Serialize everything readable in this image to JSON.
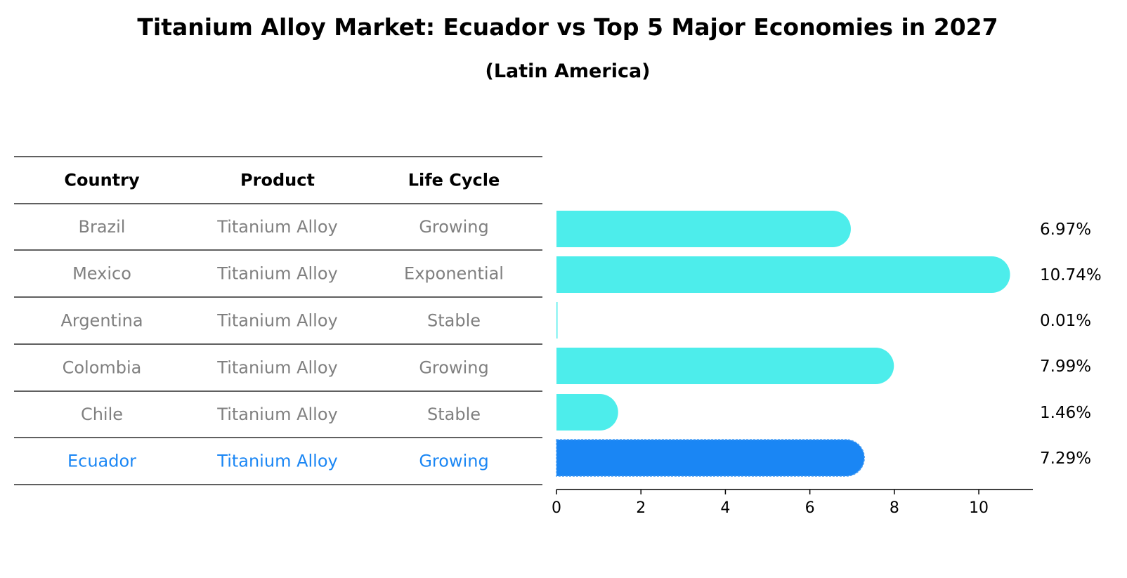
{
  "chart_data": {
    "type": "bar",
    "orientation": "horizontal",
    "title": "Titanium Alloy Market: Ecuador vs Top 5 Major Economies in 2027",
    "subtitle": "(Latin America)",
    "table": {
      "columns": [
        "Country",
        "Product",
        "Life Cycle"
      ],
      "rows": [
        {
          "country": "Brazil",
          "product": "Titanium Alloy",
          "life_cycle": "Growing"
        },
        {
          "country": "Mexico",
          "product": "Titanium Alloy",
          "life_cycle": "Exponential"
        },
        {
          "country": "Argentina",
          "product": "Titanium Alloy",
          "life_cycle": "Stable"
        },
        {
          "country": "Colombia",
          "product": "Titanium Alloy",
          "life_cycle": "Growing"
        },
        {
          "country": "Chile",
          "product": "Titanium Alloy",
          "life_cycle": "Stable"
        },
        {
          "country": "Ecuador",
          "product": "Titanium Alloy",
          "life_cycle": "Growing"
        }
      ]
    },
    "categories": [
      "Brazil",
      "Mexico",
      "Argentina",
      "Colombia",
      "Chile",
      "Ecuador"
    ],
    "values": [
      6.97,
      10.74,
      0.01,
      7.99,
      1.46,
      7.29
    ],
    "value_labels": [
      "6.97%",
      "10.74%",
      "0.01%",
      "7.99%",
      "1.46%",
      "7.29%"
    ],
    "highlight": "Ecuador",
    "xlim": [
      0,
      11.28
    ],
    "xticks": [
      0,
      2,
      4,
      6,
      8,
      10
    ],
    "colors": {
      "bar": "#4DEDEB",
      "highlight_bar": "#1A86F4",
      "highlight_text": "#1A86F4",
      "row_text": "#808080",
      "rule": "#000000"
    }
  }
}
